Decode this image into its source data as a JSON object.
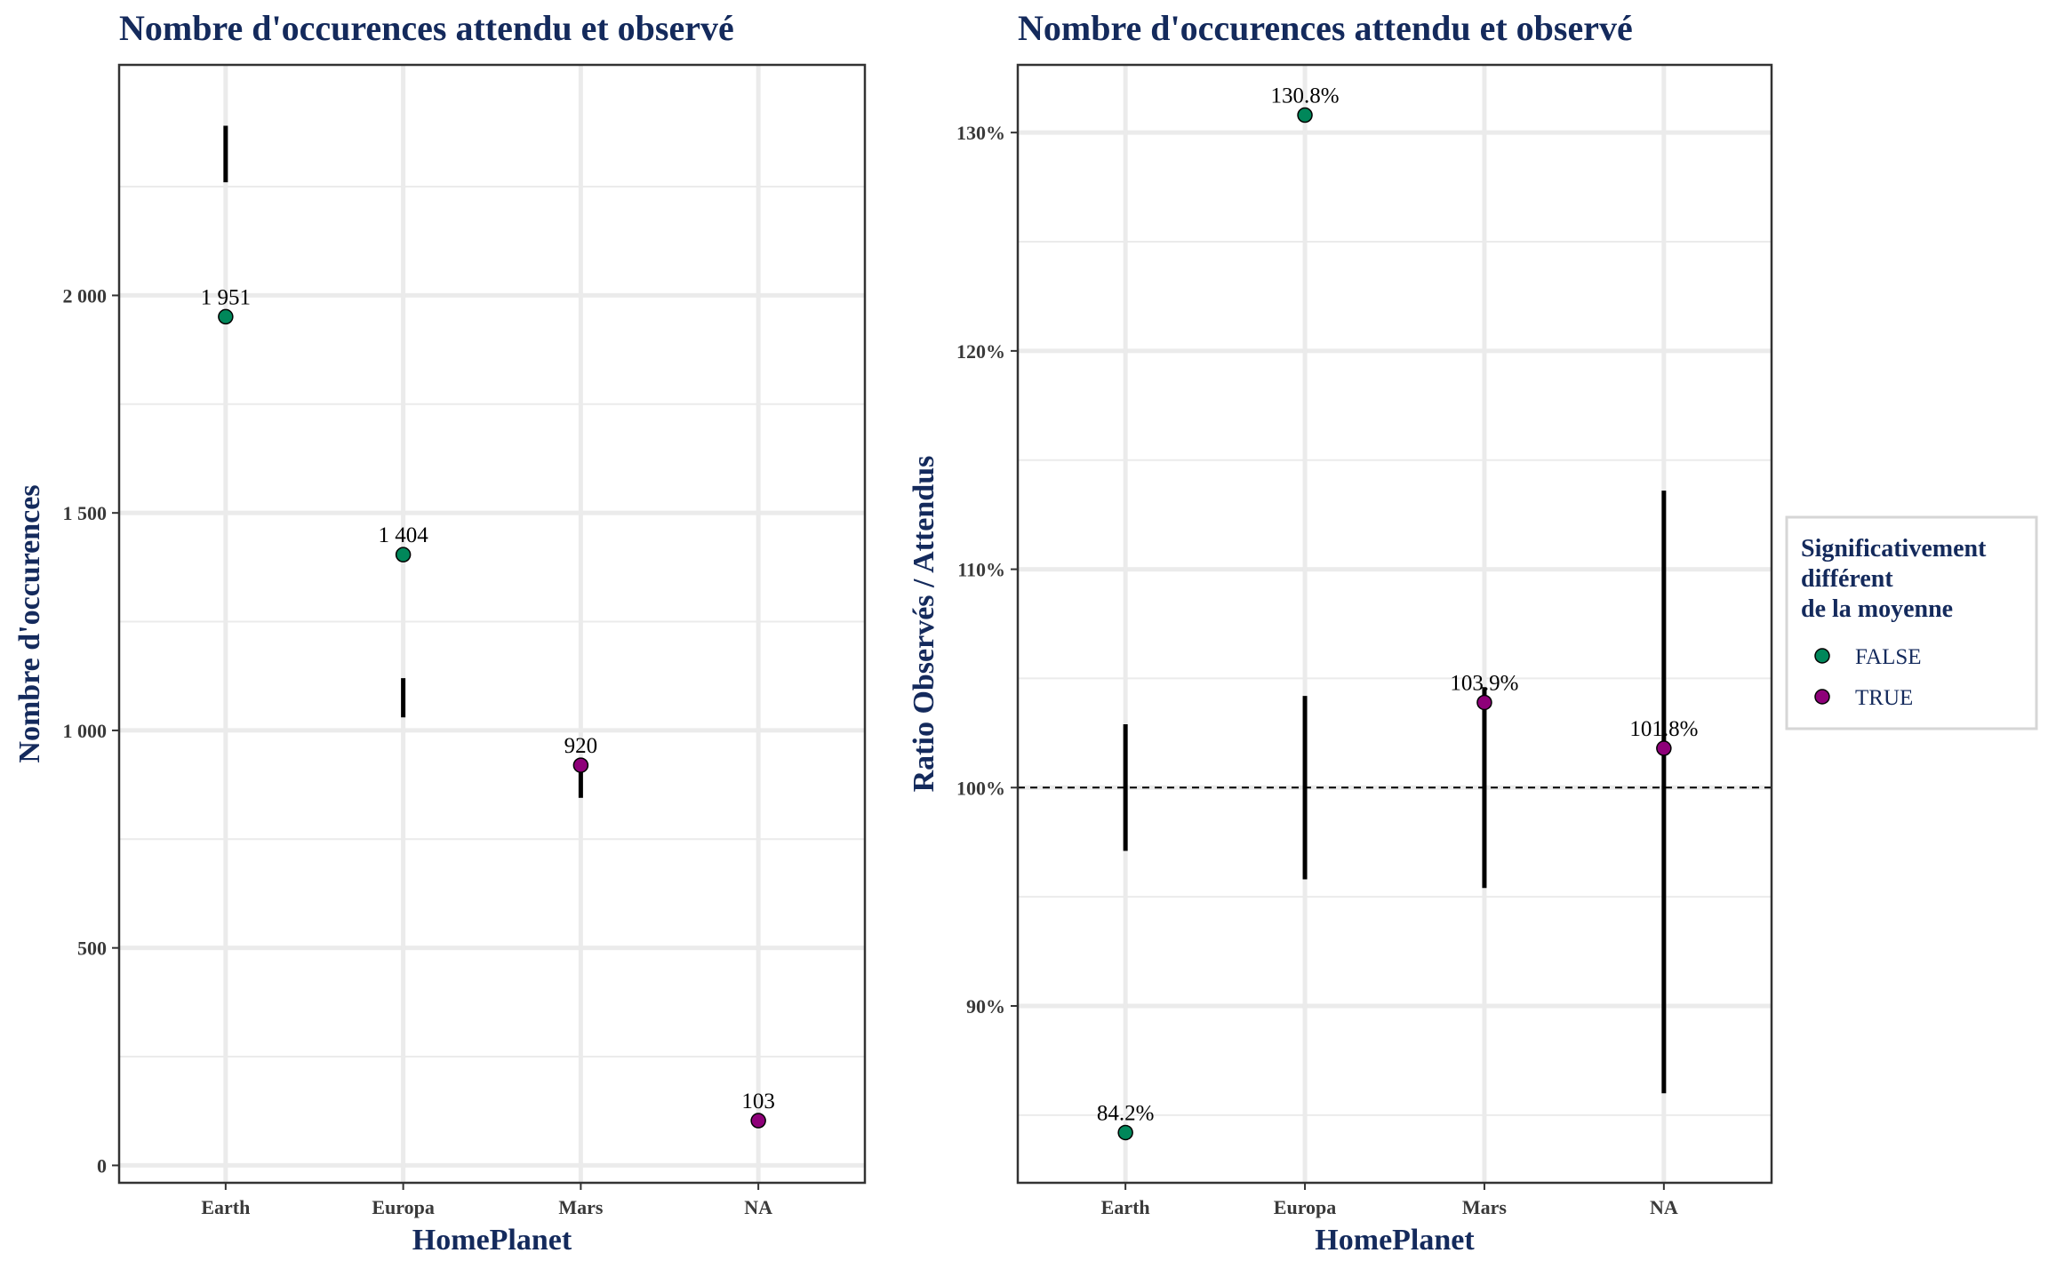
{
  "colors": {
    "false_point": "#00875a",
    "true_point": "#8e0079",
    "title": "#142a5c",
    "grid": "#ebebeb",
    "errorbar": "#000000"
  },
  "legend": {
    "title_lines": [
      "Significativement",
      "différent",
      "de la moyenne"
    ],
    "entries": [
      {
        "label": "FALSE",
        "color": "#00875a"
      },
      {
        "label": "TRUE",
        "color": "#8e0079"
      }
    ],
    "placement": "right"
  },
  "chart_data": [
    {
      "type": "scatter",
      "title": "Nombre d'occurences attendu et observé",
      "xlabel": "HomePlanet",
      "ylabel": "Nombre d'occurences",
      "categories": [
        "Earth",
        "Europa",
        "Mars",
        "NA"
      ],
      "ylim": [
        -40,
        2530
      ],
      "yticks": [
        0,
        500,
        1000,
        1500,
        2000
      ],
      "ytick_labels": [
        "0",
        "500",
        "1 000",
        "1 500",
        "2 000"
      ],
      "grid": true,
      "points": [
        {
          "x": "Earth",
          "y": 1951,
          "label": "1 951",
          "significant": "FALSE"
        },
        {
          "x": "Europa",
          "y": 1404,
          "label": "1 404",
          "significant": "FALSE"
        },
        {
          "x": "Mars",
          "y": 920,
          "label": "920",
          "significant": "TRUE"
        },
        {
          "x": "NA",
          "y": 103,
          "label": "103",
          "significant": "TRUE"
        }
      ],
      "errorbars": [
        {
          "x": "Earth",
          "ymin": 2260,
          "ymax": 2390
        },
        {
          "x": "Europa",
          "ymin": 1030,
          "ymax": 1120
        },
        {
          "x": "Mars",
          "ymin": 845,
          "ymax": 930
        },
        {
          "x": "NA",
          "ymin": 90,
          "ymax": 115
        }
      ]
    },
    {
      "type": "scatter",
      "title": "Nombre d'occurences attendu et observé",
      "xlabel": "HomePlanet",
      "ylabel": "Ratio Observés / Attendus",
      "categories": [
        "Earth",
        "Europa",
        "Mars",
        "NA"
      ],
      "ylim": [
        81.9,
        133.1
      ],
      "yticks": [
        90,
        100,
        110,
        120,
        130
      ],
      "ytick_labels": [
        "90%",
        "100%",
        "110%",
        "120%",
        "130%"
      ],
      "reference_line": 100,
      "grid": true,
      "points": [
        {
          "x": "Earth",
          "y": 84.2,
          "label": "84.2%",
          "significant": "FALSE"
        },
        {
          "x": "Europa",
          "y": 130.8,
          "label": "130.8%",
          "significant": "FALSE"
        },
        {
          "x": "Mars",
          "y": 103.9,
          "label": "103.9%",
          "significant": "TRUE"
        },
        {
          "x": "NA",
          "y": 101.8,
          "label": "101.8%",
          "significant": "TRUE"
        }
      ],
      "errorbars": [
        {
          "x": "Earth",
          "ymin": 97.1,
          "ymax": 102.9
        },
        {
          "x": "Europa",
          "ymin": 95.8,
          "ymax": 104.2
        },
        {
          "x": "Mars",
          "ymin": 95.4,
          "ymax": 104.6
        },
        {
          "x": "NA",
          "ymin": 86.0,
          "ymax": 113.6
        }
      ]
    }
  ]
}
